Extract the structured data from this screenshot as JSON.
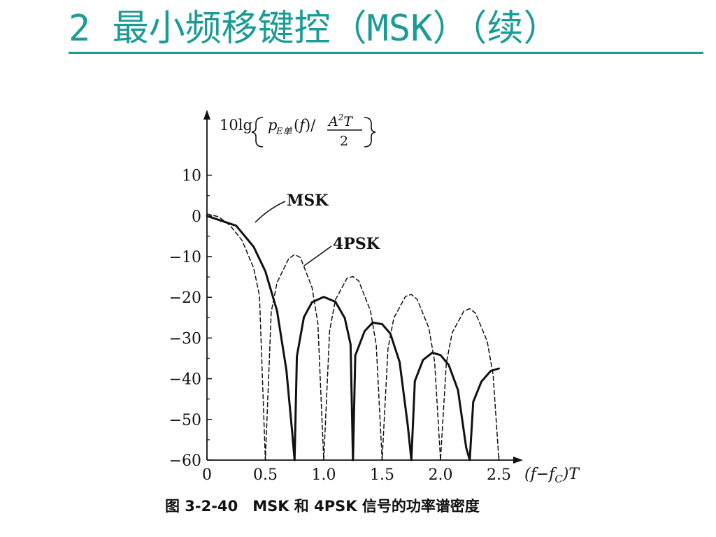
{
  "slide": {
    "title": "2 最小频移键控（MSK）（续）",
    "accent_color": "#1a9b96"
  },
  "caption": "图 3-2-40　MSK 和 4PSK 信号的功率谱密度",
  "chart_data": {
    "type": "line",
    "ylabel": "10lg{ pE单(f) / (A²T/2) }",
    "xlabel": "(f−fC)T",
    "xlim": [
      0,
      2.6
    ],
    "ylim": [
      -60,
      15
    ],
    "x_ticks": [
      0,
      0.5,
      1.0,
      1.5,
      2.0,
      2.5
    ],
    "x_tick_labels": [
      "0",
      "0.5",
      "1.0",
      "1.5",
      "2.0",
      "2.5"
    ],
    "y_ticks": [
      10,
      0,
      -10,
      -20,
      -30,
      -40,
      -50,
      -60
    ],
    "y_tick_labels": [
      "10",
      "0",
      "−10",
      "−20",
      "−30",
      "−40",
      "−50",
      "−60"
    ],
    "grid": false,
    "legend": "none",
    "series": [
      {
        "name": "MSK",
        "style": "solid",
        "color": "#111111",
        "x": [
          0,
          0.25,
          0.4,
          0.5,
          0.6,
          0.68,
          0.73,
          0.75,
          0.77,
          0.83,
          0.9,
          1.0,
          1.1,
          1.18,
          1.23,
          1.25,
          1.27,
          1.35,
          1.42,
          1.5,
          1.57,
          1.65,
          1.72,
          1.75,
          1.78,
          1.85,
          1.93,
          2.0,
          2.07,
          2.15,
          2.22,
          2.25,
          2.28,
          2.35,
          2.43,
          2.5
        ],
        "y": [
          0,
          -2.4,
          -7.6,
          -13.6,
          -23.3,
          -37.9,
          -53.2,
          -60,
          -34.5,
          -24.9,
          -21.2,
          -19.9,
          -21.1,
          -25.1,
          -31.6,
          -60,
          -34.3,
          -28.3,
          -26.2,
          -26.6,
          -28.9,
          -35.9,
          -51.5,
          -60,
          -40.6,
          -35.4,
          -33.6,
          -34.2,
          -36.6,
          -42.8,
          -56.9,
          -60,
          -45.7,
          -40.7,
          -38.1,
          -37.5
        ]
      },
      {
        "name": "4PSK",
        "style": "dashed",
        "color": "#111111",
        "x": [
          0,
          0.1,
          0.2,
          0.3,
          0.4,
          0.45,
          0.5,
          0.55,
          0.6,
          0.7,
          0.75,
          0.8,
          0.9,
          0.95,
          1.0,
          1.05,
          1.1,
          1.2,
          1.25,
          1.3,
          1.4,
          1.45,
          1.5,
          1.55,
          1.6,
          1.7,
          1.75,
          1.8,
          1.9,
          1.95,
          2.0,
          2.05,
          2.1,
          2.2,
          2.25,
          2.3,
          2.4,
          2.45,
          2.5
        ],
        "y": [
          0.5,
          -0.2,
          -2.4,
          -6.0,
          -12.8,
          -19.6,
          -60,
          -23.6,
          -16.4,
          -10.5,
          -9.5,
          -10.2,
          -17.6,
          -26.4,
          -60,
          -28.3,
          -20.6,
          -15.3,
          -14.9,
          -16.0,
          -23.3,
          -31.7,
          -60,
          -32.6,
          -25.1,
          -19.8,
          -19.3,
          -20.5,
          -27.5,
          -35.8,
          -60,
          -36.2,
          -28.7,
          -23.4,
          -22.8,
          -23.9,
          -30.8,
          -39.0,
          -60
        ]
      }
    ],
    "annotations": [
      {
        "text": "MSK",
        "target_series": "MSK"
      },
      {
        "text": "4PSK",
        "target_series": "4PSK"
      }
    ]
  }
}
